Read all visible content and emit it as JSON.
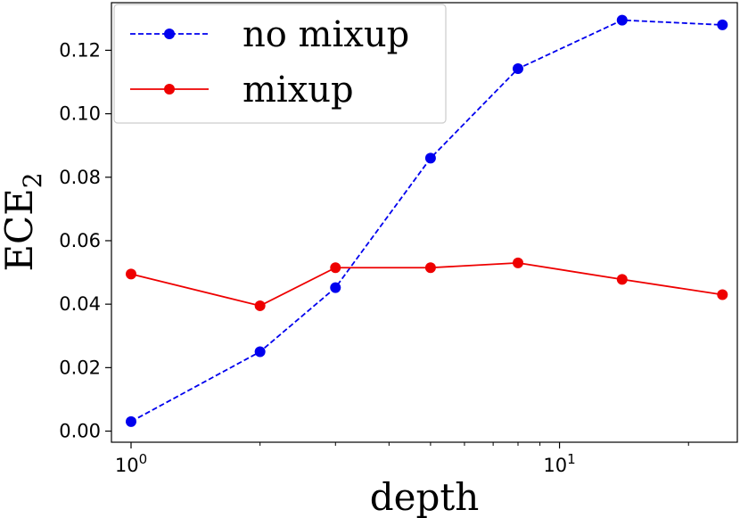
{
  "chart_data": {
    "type": "line",
    "xscale": "log",
    "xlabel": "depth",
    "ylabel_main": "ECE",
    "ylabel_sub": "2",
    "xlim": [
      0.9,
      26
    ],
    "ylim": [
      -0.0035,
      0.135
    ],
    "x": [
      1,
      2,
      3,
      5,
      8,
      14,
      24
    ],
    "x_major_ticks": [
      {
        "value": 1,
        "base": "10",
        "exp": "0"
      },
      {
        "value": 10,
        "base": "10",
        "exp": "1"
      }
    ],
    "x_minor_ticks": [
      2,
      3,
      4,
      5,
      6,
      7,
      8,
      9,
      20
    ],
    "y_ticks": [
      {
        "value": 0.0,
        "label": "0.00"
      },
      {
        "value": 0.02,
        "label": "0.02"
      },
      {
        "value": 0.04,
        "label": "0.04"
      },
      {
        "value": 0.06,
        "label": "0.06"
      },
      {
        "value": 0.08,
        "label": "0.08"
      },
      {
        "value": 0.1,
        "label": "0.10"
      },
      {
        "value": 0.12,
        "label": "0.12"
      }
    ],
    "grid": false,
    "legend_position": "top-left",
    "series": [
      {
        "name": "no mixup",
        "color": "#0000ee",
        "dash": "dashed",
        "marker": "circle",
        "values": [
          0.003,
          0.025,
          0.0452,
          0.086,
          0.1142,
          0.1295,
          0.128
        ]
      },
      {
        "name": "mixup",
        "color": "#ee0000",
        "dash": "solid",
        "marker": "circle",
        "values": [
          0.0495,
          0.0395,
          0.0515,
          0.0515,
          0.053,
          0.0478,
          0.043
        ]
      }
    ]
  }
}
